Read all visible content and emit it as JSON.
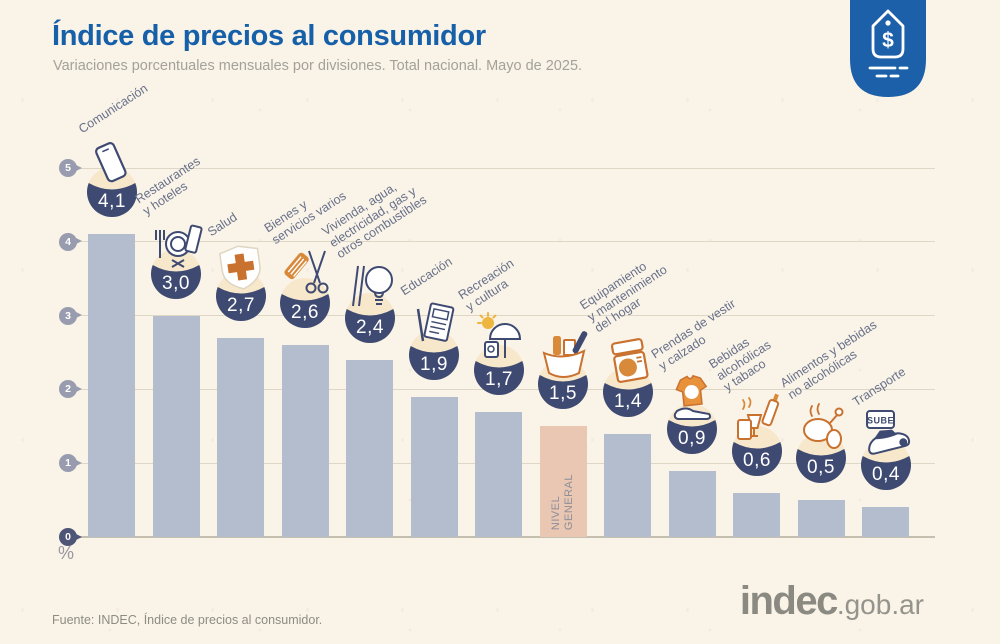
{
  "header": {
    "title": "Índice de precios al consumidor",
    "subtitle": "Variaciones porcentuales mensuales por divisiones. Total nacional. Mayo de 2025."
  },
  "brand_badge": {
    "icon": "price-tag-icon",
    "symbol": "$"
  },
  "chart_data": {
    "type": "bar",
    "title": "Índice de precios al consumidor",
    "subtitle": "Variaciones porcentuales mensuales por divisiones. Total nacional. Mayo de 2025.",
    "unit_label": "%",
    "ylim": [
      0,
      5
    ],
    "yticks": [
      5,
      4,
      3,
      2,
      1,
      0
    ],
    "grid": true,
    "legend": "none",
    "highlight_category": "NIVEL GENERAL",
    "categories": [
      {
        "label": "Comunicación",
        "label_lines": [
          "Comunicación"
        ],
        "value": 4.1,
        "value_label": "4,1",
        "icon": "phone-icon"
      },
      {
        "label": "Restaurantes y hoteles",
        "label_lines": [
          "Restaurantes",
          "y hoteles"
        ],
        "value": 3.0,
        "value_label": "3,0",
        "icon": "restaurant-icon"
      },
      {
        "label": "Salud",
        "label_lines": [
          "Salud"
        ],
        "value": 2.7,
        "value_label": "2,7",
        "icon": "health-cross-icon"
      },
      {
        "label": "Bienes y servicios varios",
        "label_lines": [
          "Bienes y",
          "servicios varios"
        ],
        "value": 2.6,
        "value_label": "2,6",
        "icon": "comb-scissors-icon"
      },
      {
        "label": "Vivienda, agua, electricidad, gas y otros combustibles",
        "label_lines": [
          "Vivienda, agua,",
          "electricidad, gas y",
          "otros combustibles"
        ],
        "value": 2.4,
        "value_label": "2,4",
        "icon": "lightbulb-icon"
      },
      {
        "label": "Educación",
        "label_lines": [
          "Educación"
        ],
        "value": 1.9,
        "value_label": "1,9",
        "icon": "notebook-icon"
      },
      {
        "label": "Recreación y cultura",
        "label_lines": [
          "Recreación",
          "y cultura"
        ],
        "value": 1.7,
        "value_label": "1,7",
        "icon": "sun-umbrella-icon"
      },
      {
        "label": "NIVEL GENERAL",
        "label_lines": [],
        "bar_text_lines": [
          "NIVEL",
          "GENERAL"
        ],
        "value": 1.5,
        "value_label": "1,5",
        "icon": "shopping-basket-icon",
        "highlight": true
      },
      {
        "label": "Equipamiento y mantenimiento del hogar",
        "label_lines": [
          "Equipamiento",
          "y mantenimiento",
          "del hogar"
        ],
        "value": 1.4,
        "value_label": "1,4",
        "icon": "washing-machine-icon"
      },
      {
        "label": "Prendas de vestir y calzado",
        "label_lines": [
          "Prendas de vestir",
          "y calzado"
        ],
        "value": 0.9,
        "value_label": "0,9",
        "icon": "clothing-icon"
      },
      {
        "label": "Bebidas alcohólicas y tabaco",
        "label_lines": [
          "Bebidas",
          "alcohólicas",
          "y tabaco"
        ],
        "value": 0.6,
        "value_label": "0,6",
        "icon": "drinks-tobacco-icon"
      },
      {
        "label": "Alimentos y bebidas no alcohólicas",
        "label_lines": [
          "Alimentos y bebidas",
          "no alcohólicas"
        ],
        "value": 0.5,
        "value_label": "0,5",
        "icon": "food-icon"
      },
      {
        "label": "Transporte",
        "label_lines": [
          "Transporte"
        ],
        "value": 0.4,
        "value_label": "0,4",
        "icon": "sube-card-car-icon",
        "icon_text": "SUBE"
      }
    ]
  },
  "footer": {
    "source": "Fuente: INDEC, Índice de precios al consumidor.",
    "logo_text": "indec",
    "logo_suffix": ".gob.ar"
  },
  "colors": {
    "title_blue": "#1660aa",
    "bar": "#b4bdce",
    "highlight_bar": "#e9c7b2",
    "bowl_navy": "#3e4a71",
    "icon_circle": "#f7e7cb",
    "accent_orange": "#d9893a",
    "badge_blue": "#1b60a9",
    "background": "#faf3e7"
  }
}
